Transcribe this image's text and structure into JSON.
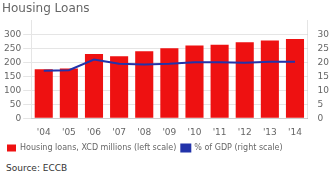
{
  "chart_data": {
    "type": "bar",
    "title": "Housing Loans",
    "categories": [
      "'04",
      "'05",
      "'06",
      "'07",
      "'08",
      "'09",
      "'10",
      "'11",
      "'12",
      "'13",
      "'14"
    ],
    "series": [
      {
        "name": "Housing loans, XCD millions (left scale)",
        "type": "bar",
        "color": "#ee1111",
        "values": [
          175,
          178,
          230,
          222,
          240,
          250,
          260,
          263,
          272,
          278,
          283
        ]
      },
      {
        "name": "% of GDP (right scale)",
        "type": "line",
        "color": "#2233aa",
        "axis": "y2",
        "values": [
          17.0,
          17.2,
          21.0,
          19.5,
          19.2,
          19.5,
          20.0,
          20.0,
          19.8,
          20.2,
          20.2
        ]
      }
    ],
    "ylim": [
      0,
      350
    ],
    "yticks": [
      0,
      50,
      100,
      150,
      200,
      250,
      300
    ],
    "y2lim": [
      0,
      35
    ],
    "y2ticks": [
      0,
      5,
      10,
      15,
      20,
      25,
      30
    ],
    "grid": true,
    "legend": "lower left",
    "annotations": [
      "Source: ECCB"
    ]
  }
}
